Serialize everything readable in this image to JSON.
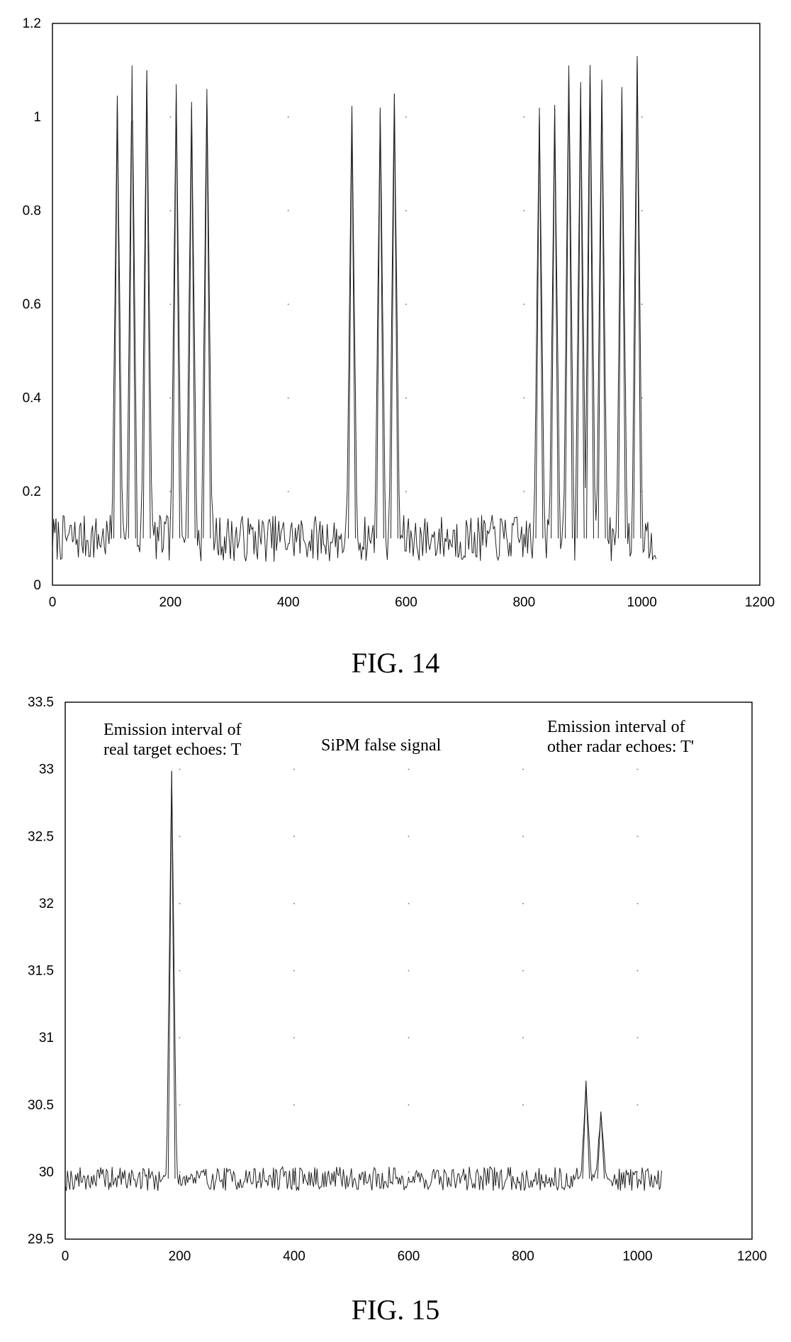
{
  "chart_data": [
    {
      "type": "line",
      "caption": "FIG. 14",
      "title": "",
      "xlabel": "",
      "ylabel": "",
      "xlim": [
        0,
        1200
      ],
      "ylim": [
        0,
        1.2
      ],
      "xticks": [
        "0",
        "200",
        "400",
        "600",
        "800",
        "1000",
        "1200"
      ],
      "yticks": [
        "0",
        "0.2",
        "0.4",
        "0.6",
        "0.8",
        "1",
        "1.2"
      ],
      "grid": "dotted",
      "annotations": [],
      "baseline": 0.1,
      "noise": 0.05,
      "x_end": 1025,
      "pulses": [
        {
          "x": 110,
          "y": 1.04
        },
        {
          "x": 135,
          "y": 1.11
        },
        {
          "x": 160,
          "y": 1.1
        },
        {
          "x": 210,
          "y": 1.07
        },
        {
          "x": 236,
          "y": 1.02
        },
        {
          "x": 262,
          "y": 1.06
        },
        {
          "x": 508,
          "y": 1.01
        },
        {
          "x": 556,
          "y": 1.02
        },
        {
          "x": 580,
          "y": 1.05
        },
        {
          "x": 826,
          "y": 1.02
        },
        {
          "x": 852,
          "y": 1.02
        },
        {
          "x": 876,
          "y": 1.11
        },
        {
          "x": 896,
          "y": 1.06
        },
        {
          "x": 912,
          "y": 1.1
        },
        {
          "x": 932,
          "y": 1.08
        },
        {
          "x": 966,
          "y": 1.05
        },
        {
          "x": 992,
          "y": 1.13
        }
      ]
    },
    {
      "type": "line",
      "caption": "FIG. 15",
      "title": "",
      "xlabel": "",
      "ylabel": "",
      "xlim": [
        0,
        1200
      ],
      "ylim": [
        29.5,
        33.5
      ],
      "xticks": [
        "0",
        "200",
        "400",
        "600",
        "800",
        "1000",
        "1200"
      ],
      "yticks": [
        "29.5",
        "30",
        "30.5",
        "31",
        "31.5",
        "32",
        "32.5",
        "33",
        "33.5"
      ],
      "grid": "dotted",
      "annotations": [
        {
          "lines": [
            "Emission interval of",
            "real target echoes: T"
          ]
        },
        {
          "lines": [
            "SiPM false signal"
          ]
        },
        {
          "lines": [
            "Emission  interval  of",
            "other radar echoes: T'"
          ]
        }
      ],
      "baseline": 29.95,
      "noise": 0.09,
      "x_end": 1042,
      "pulses": [
        {
          "x": 186,
          "y": 32.98
        },
        {
          "x": 910,
          "y": 30.66
        },
        {
          "x": 936,
          "y": 30.45
        }
      ]
    }
  ]
}
